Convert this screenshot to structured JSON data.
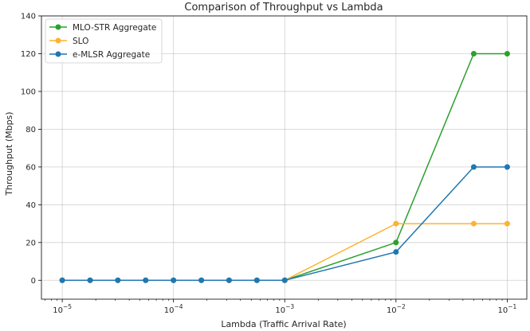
{
  "chart_data": {
    "type": "line",
    "title": "Comparison of Throughput vs Lambda",
    "xlabel": "Lambda (Traffic Arrival Rate)",
    "ylabel": "Throughput (Mbps)",
    "xscale": "log",
    "xlim": [
      6.5e-06,
      0.15
    ],
    "ylim": [
      -10,
      140
    ],
    "grid": true,
    "legend_position": "upper-left",
    "x_ticks": [
      {
        "value": 1e-05,
        "base": "10",
        "exp": "−5"
      },
      {
        "value": 0.0001,
        "base": "10",
        "exp": "−4"
      },
      {
        "value": 0.001,
        "base": "10",
        "exp": "−3"
      },
      {
        "value": 0.01,
        "base": "10",
        "exp": "−2"
      },
      {
        "value": 0.1,
        "base": "10",
        "exp": "−1"
      }
    ],
    "y_ticks": [
      0,
      20,
      40,
      60,
      80,
      100,
      120,
      140
    ],
    "x": [
      1e-05,
      1.78e-05,
      3.16e-05,
      5.62e-05,
      0.0001,
      0.000178,
      0.000316,
      0.000562,
      0.001,
      0.01,
      0.05,
      0.1
    ],
    "series": [
      {
        "name": "MLO-STR Aggregate",
        "color": "#2ca02c",
        "values": [
          0,
          0,
          0,
          0,
          0,
          0,
          0,
          0,
          0,
          20,
          120,
          120
        ]
      },
      {
        "name": "SLO",
        "color": "#ffb22e",
        "values": [
          0,
          0,
          0,
          0,
          0,
          0,
          0,
          0,
          0,
          30,
          30,
          30
        ]
      },
      {
        "name": "e-MLSR Aggregate",
        "color": "#1f77b4",
        "values": [
          0,
          0,
          0,
          0,
          0,
          0,
          0,
          0,
          0,
          15,
          60,
          60
        ]
      }
    ]
  }
}
